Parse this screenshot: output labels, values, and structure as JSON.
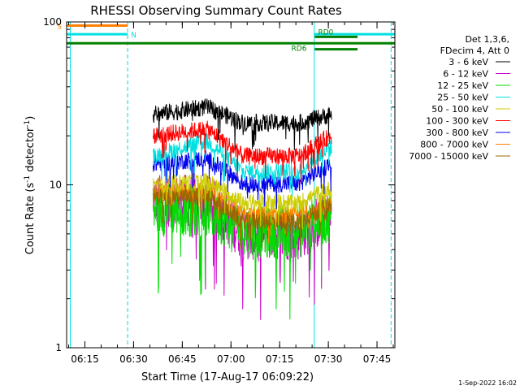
{
  "chart_data": {
    "type": "line",
    "title": "RHESSI Observing Summary Count Rates",
    "xlabel": "Start Time (17-Aug-17 06:09:22)",
    "ylabel": "Count Rate (s",
    "ylabel_sup": "-1",
    "ylabel_tail": " detector",
    "ylabel_end": ")",
    "y_scale": "log",
    "ylim": [
      1,
      100
    ],
    "xlim": [
      "06:09:22",
      "07:50:30"
    ],
    "y_ticks": [
      "1",
      "10",
      "100"
    ],
    "x_ticks": [
      "06:15",
      "06:30",
      "06:45",
      "07:00",
      "07:15",
      "07:30",
      "07:45"
    ],
    "footer_date": "1-Sep-2022 16:02",
    "legend": {
      "header": [
        "Det 1,3,6,",
        "FDecim 4, Att 0"
      ],
      "placement": "right"
    },
    "series": [
      {
        "name": "3 - 6 keV",
        "color": "#000000",
        "values": {
          "start": 27,
          "hump": 30,
          "dip": 24,
          "end": 27
        }
      },
      {
        "name": "6 - 12 keV",
        "color": "#cc00cc",
        "values": {
          "start": 8,
          "hump": 8,
          "dip": 5,
          "end": 6.5
        }
      },
      {
        "name": "12 - 25 keV",
        "color": "#00dd00",
        "values": {
          "start": 7,
          "hump": 7,
          "dip": 5.2,
          "end": 6.5
        }
      },
      {
        "name": "25 - 50 keV",
        "color": "#00e0e0",
        "values": {
          "start": 15,
          "hump": 18.5,
          "dip": 12,
          "end": 17
        }
      },
      {
        "name": "50 - 100 keV",
        "color": "#cccc00",
        "values": {
          "start": 10,
          "hump": 10.5,
          "dip": 7.8,
          "end": 9.5
        }
      },
      {
        "name": "100 - 300 keV",
        "color": "#ff0000",
        "values": {
          "start": 20,
          "hump": 22,
          "dip": 15,
          "end": 20
        }
      },
      {
        "name": "300 - 800 keV",
        "color": "#0000ee",
        "values": {
          "start": 13.5,
          "hump": 14.5,
          "dip": 10.2,
          "end": 13.5
        }
      },
      {
        "name": "800 - 7000 keV",
        "color": "#ff8000",
        "values": {
          "start": 9,
          "hump": 9.2,
          "dip": 6.5,
          "end": 7.8
        }
      },
      {
        "name": "7000 - 15000 keV",
        "color": "#996600",
        "values": {
          "start": 8.5,
          "hump": 8.5,
          "dip": 6,
          "end": 7.5
        }
      }
    ],
    "data_window": [
      "06:36",
      "07:31"
    ],
    "flags": [
      {
        "label": "S",
        "color": "#ff8000",
        "start": "06:09:22",
        "end": "06:28:10",
        "y": 95
      },
      {
        "label": "N",
        "color": "#00e0e0",
        "start": "06:09:22",
        "end": "06:28:10",
        "y": 84
      },
      {
        "label": "",
        "color": "#00e0e0",
        "start": "07:25:40",
        "end": "07:50:30",
        "y": 84
      },
      {
        "label": "",
        "color": "#008000",
        "start": "06:09:22",
        "end": "07:50:30",
        "y": 74
      },
      {
        "label": "RD6",
        "color": "#008000",
        "start": "07:25:50",
        "end": "07:39:00",
        "y": 68
      },
      {
        "label": "RD0",
        "color": "#008000",
        "start": "07:25:50",
        "end": "07:39:00",
        "y": 81
      }
    ],
    "vlines": [
      {
        "time": "06:10:30",
        "color": "#00e0e0",
        "style": "solid"
      },
      {
        "time": "06:28:10",
        "color": "#00e0e0",
        "style": "dashed"
      },
      {
        "time": "07:25:40",
        "color": "#00e0e0",
        "style": "solid"
      },
      {
        "time": "07:49:20",
        "color": "#00e0e0",
        "style": "dashed"
      }
    ]
  }
}
